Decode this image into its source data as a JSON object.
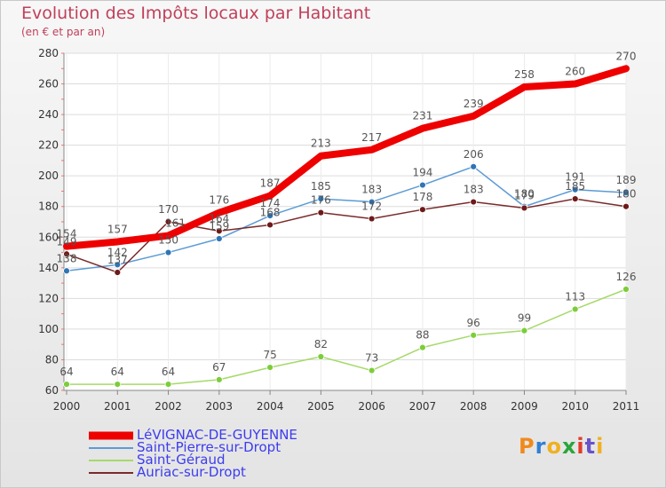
{
  "header": {
    "title": "Evolution des Impôts locaux par Habitant",
    "subtitle": "(en € et par an)"
  },
  "logo": {
    "text": "Proxiti",
    "letters": [
      "P",
      "r",
      "o",
      "x",
      "i",
      "t",
      "i"
    ],
    "colors": [
      "#f08a1c",
      "#2f7fd6",
      "#f0b020",
      "#2aa63a",
      "#e23b2b",
      "#6a52c8",
      "#f0b020"
    ]
  },
  "chart_data": {
    "type": "line",
    "title": "Evolution des Impôts locaux par Habitant",
    "subtitle": "(en € et par an)",
    "xlabel": "",
    "ylabel": "",
    "categories": [
      "2000",
      "2001",
      "2002",
      "2003",
      "2004",
      "2005",
      "2006",
      "2007",
      "2008",
      "2009",
      "2010",
      "2011"
    ],
    "ylim": [
      60,
      280
    ],
    "yticks": [
      60,
      80,
      100,
      120,
      140,
      160,
      180,
      200,
      220,
      240,
      260,
      280
    ],
    "grid": true,
    "legend_position": "bottom-left",
    "series": [
      {
        "name": "LéVIGNAC-DE-GUYENNE",
        "color": "#ee0000",
        "width": "thick",
        "markers": false,
        "values": [
          154,
          157,
          161,
          176,
          187,
          213,
          217,
          231,
          239,
          258,
          260,
          270
        ],
        "labels": [
          "154",
          "157",
          "",
          "176",
          "187",
          "213",
          "217",
          "231",
          "239",
          "258",
          "260",
          "270"
        ]
      },
      {
        "name": "Saint-Pierre-sur-Dropt",
        "color": "#5b9bd5",
        "marker_color": "#2e75b6",
        "width": "thin",
        "markers": true,
        "values": [
          138,
          142,
          150,
          159,
          174,
          185,
          183,
          194,
          206,
          180,
          191,
          189
        ],
        "labels": [
          "138",
          "142",
          "150",
          "159",
          "174",
          "185",
          "183",
          "194",
          "206",
          "180",
          "191",
          "189"
        ]
      },
      {
        "name": "Saint-Géraud",
        "color": "#a6d96a",
        "marker_color": "#7ccd3a",
        "width": "thin",
        "markers": true,
        "values": [
          64,
          64,
          64,
          67,
          75,
          82,
          73,
          88,
          96,
          99,
          113,
          126
        ],
        "labels": [
          "64",
          "64",
          "64",
          "67",
          "75",
          "82",
          "73",
          "88",
          "96",
          "99",
          "113",
          "126"
        ]
      },
      {
        "name": "Auriac-sur-Dropt",
        "color": "#7a2a2a",
        "marker_color": "#6e1a1a",
        "width": "thin",
        "markers": true,
        "values": [
          149,
          137,
          170,
          164,
          168,
          176,
          172,
          178,
          183,
          179,
          185,
          180
        ],
        "labels": [
          "149",
          "137",
          "170",
          "164",
          "168",
          "176",
          "172",
          "178",
          "183",
          "179",
          "185",
          "180"
        ]
      }
    ],
    "extra_labels": [
      {
        "text": "161",
        "x": "2002",
        "y": 161
      }
    ]
  }
}
